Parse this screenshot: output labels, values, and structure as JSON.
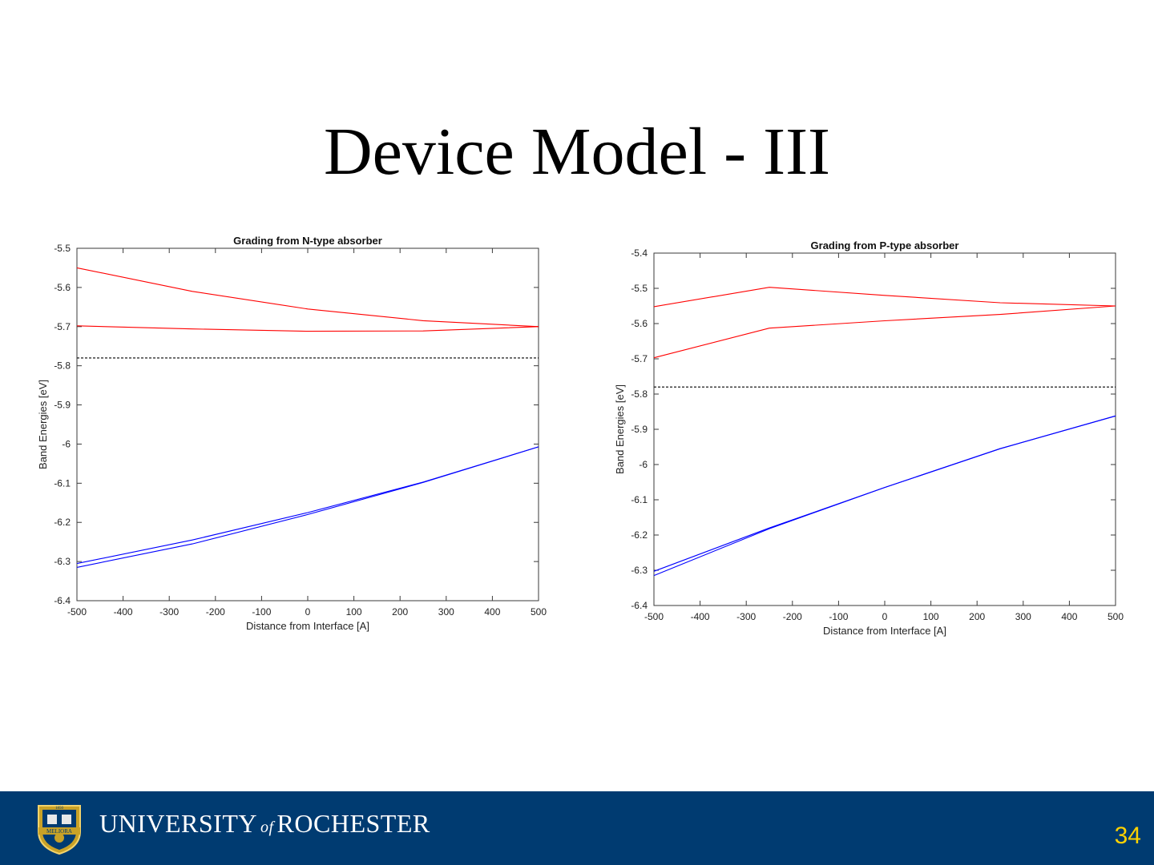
{
  "slide": {
    "title": "Device Model - III",
    "page_number": "34"
  },
  "footer": {
    "university_pre": "UNIVERSITY",
    "university_of": "of",
    "university_post": "ROCHESTER",
    "seal_text": "MELIORA",
    "seal_year": "1850",
    "background_color": "#003b71",
    "page_number_color": "#ffd200"
  },
  "chart_data": [
    {
      "id": "chart-left",
      "type": "line",
      "title": "Grading from N-type absorber",
      "xlabel": "Distance from Interface [A]",
      "ylabel": "Band Energies [eV]",
      "xlim": [
        -500,
        500
      ],
      "ylim": [
        -6.4,
        -5.5
      ],
      "xticks": [
        -500,
        -400,
        -300,
        -200,
        -100,
        0,
        100,
        200,
        300,
        400,
        500
      ],
      "yticks": [
        -5.5,
        -5.6,
        -5.7,
        -5.8,
        -5.9,
        -6,
        -6.1,
        -6.2,
        -6.3,
        -6.4
      ],
      "grid": false,
      "series": [
        {
          "color": "#ff0000",
          "x": [
            -500,
            -250,
            0,
            250,
            500
          ],
          "y": [
            -5.55,
            -5.61,
            -5.655,
            -5.685,
            -5.7
          ],
          "dashed": false
        },
        {
          "color": "#ff0000",
          "x": [
            -500,
            -250,
            0,
            250,
            500
          ],
          "y": [
            -5.698,
            -5.706,
            -5.712,
            -5.711,
            -5.7
          ],
          "dashed": false
        },
        {
          "color": "#000000",
          "x": [
            -500,
            500
          ],
          "y": [
            -5.78,
            -5.78
          ],
          "dashed": true
        },
        {
          "color": "#0000ff",
          "x": [
            -500,
            -250,
            0,
            250,
            500
          ],
          "y": [
            -6.305,
            -6.245,
            -6.175,
            -6.097,
            -6.007
          ],
          "dashed": false
        },
        {
          "color": "#0000ff",
          "x": [
            -500,
            -250,
            0,
            250,
            500
          ],
          "y": [
            -6.315,
            -6.255,
            -6.18,
            -6.098,
            -6.007
          ],
          "dashed": false
        }
      ]
    },
    {
      "id": "chart-right",
      "type": "line",
      "title": "Grading from P-type absorber",
      "xlabel": "Distance from Interface [A]",
      "ylabel": "Band Energies [eV]",
      "xlim": [
        -500,
        500
      ],
      "ylim": [
        -6.4,
        -5.4
      ],
      "xticks": [
        -500,
        -400,
        -300,
        -200,
        -100,
        0,
        100,
        200,
        300,
        400,
        500
      ],
      "yticks": [
        -5.4,
        -5.5,
        -5.6,
        -5.7,
        -5.8,
        -5.9,
        -6,
        -6.1,
        -6.2,
        -6.3,
        -6.4
      ],
      "grid": false,
      "series": [
        {
          "color": "#ff0000",
          "x": [
            -500,
            -250,
            0,
            250,
            500
          ],
          "y": [
            -5.552,
            -5.497,
            -5.52,
            -5.541,
            -5.55
          ],
          "dashed": false
        },
        {
          "color": "#ff0000",
          "x": [
            -500,
            -250,
            0,
            250,
            500
          ],
          "y": [
            -5.697,
            -5.613,
            -5.592,
            -5.574,
            -5.55
          ],
          "dashed": false
        },
        {
          "color": "#000000",
          "x": [
            -500,
            500
          ],
          "y": [
            -5.78,
            -5.78
          ],
          "dashed": true
        },
        {
          "color": "#0000ff",
          "x": [
            -500,
            -250,
            0,
            250,
            500
          ],
          "y": [
            -6.303,
            -6.18,
            -6.065,
            -5.955,
            -5.862
          ],
          "dashed": false
        },
        {
          "color": "#0000ff",
          "x": [
            -500,
            -250,
            0,
            250,
            500
          ],
          "y": [
            -6.315,
            -6.182,
            -6.065,
            -5.955,
            -5.862
          ],
          "dashed": false
        }
      ]
    }
  ]
}
